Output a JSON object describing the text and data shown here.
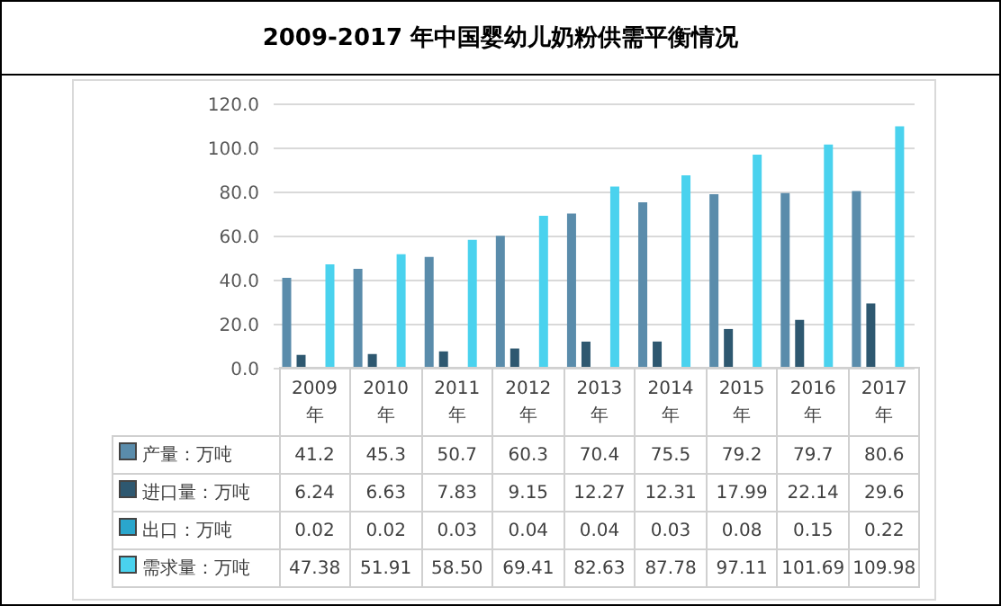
{
  "chart_data": {
    "type": "bar",
    "title": "2009-2017 年中国婴幼儿奶粉供需平衡情况",
    "categories": [
      "2009年",
      "2010年",
      "2011年",
      "2012年",
      "2013年",
      "2014年",
      "2015年",
      "2016年",
      "2017年"
    ],
    "series": [
      {
        "name": "产量：万吨",
        "color": "#5a8cab",
        "values": [
          41.2,
          45.3,
          50.7,
          60.3,
          70.4,
          75.5,
          79.2,
          79.7,
          80.6
        ],
        "value_labels": [
          "41.2",
          "45.3",
          "50.7",
          "60.3",
          "70.4",
          "75.5",
          "79.2",
          "79.7",
          "80.6"
        ]
      },
      {
        "name": "进口量：万吨",
        "color": "#2e5870",
        "values": [
          6.24,
          6.63,
          7.83,
          9.15,
          12.27,
          12.31,
          17.99,
          22.14,
          29.6
        ],
        "value_labels": [
          "6.24",
          "6.63",
          "7.83",
          "9.15",
          "12.27",
          "12.31",
          "17.99",
          "22.14",
          "29.6"
        ]
      },
      {
        "name": "出口：万吨",
        "color": "#2aa6cc",
        "values": [
          0.02,
          0.02,
          0.03,
          0.04,
          0.04,
          0.03,
          0.08,
          0.15,
          0.22
        ],
        "value_labels": [
          "0.02",
          "0.02",
          "0.03",
          "0.04",
          "0.04",
          "0.03",
          "0.08",
          "0.15",
          "0.22"
        ]
      },
      {
        "name": "需求量：万吨",
        "color": "#4ad2ee",
        "values": [
          47.38,
          51.91,
          58.5,
          69.41,
          82.63,
          87.78,
          97.11,
          101.69,
          109.98
        ],
        "value_labels": [
          "47.38",
          "51.91",
          "58.50",
          "69.41",
          "82.63",
          "87.78",
          "97.11",
          "101.69",
          "109.98"
        ]
      }
    ],
    "ylim": [
      0,
      120
    ],
    "yticks": [
      {
        "value": 0,
        "label": "0.0"
      },
      {
        "value": 20,
        "label": "20.0"
      },
      {
        "value": 40,
        "label": "40.0"
      },
      {
        "value": 60,
        "label": "60.0"
      },
      {
        "value": 80,
        "label": "80.0"
      },
      {
        "value": 100,
        "label": "100.0"
      },
      {
        "value": 120,
        "label": "120.0"
      }
    ],
    "grid": "y",
    "legend": "bottom"
  }
}
